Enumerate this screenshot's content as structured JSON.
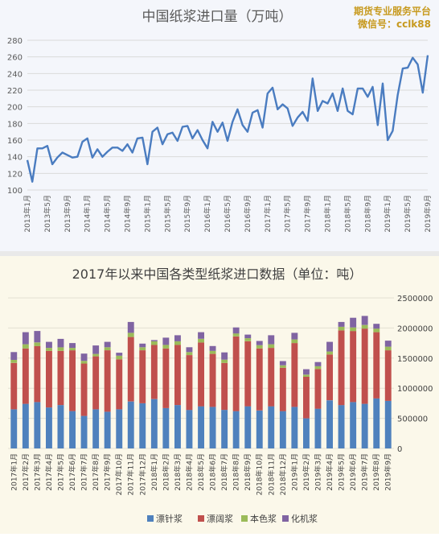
{
  "watermark": {
    "line1": "期货专业服务平台",
    "line2": "微信号：cclk88"
  },
  "chart_data": [
    {
      "type": "line",
      "title": "中国纸浆进口量（万吨）",
      "ylim": [
        100,
        280
      ],
      "yticks": [
        100,
        120,
        140,
        160,
        180,
        200,
        220,
        240,
        260,
        280
      ],
      "x_tick_labels": [
        "2013年1月",
        "2013年5月",
        "2013年9月",
        "2014年1月",
        "2014年5月",
        "2014年9月",
        "2015年1月",
        "2015年5月",
        "2015年9月",
        "2016年1月",
        "2016年5月",
        "2016年9月",
        "2017年1月",
        "2017年5月",
        "2017年9月",
        "2018年1月",
        "2018年5月",
        "2018年9月",
        "2019年1月",
        "2019年5月",
        "2019年9月"
      ],
      "color": "#4a7cc0",
      "grid": true,
      "values": [
        136,
        110,
        150,
        150,
        153,
        131,
        139,
        145,
        142,
        139,
        140,
        158,
        162,
        139,
        149,
        140,
        146,
        151,
        151,
        147,
        155,
        145,
        162,
        163,
        131,
        170,
        175,
        155,
        167,
        169,
        159,
        176,
        177,
        162,
        172,
        160,
        150,
        182,
        170,
        181,
        159,
        182,
        197,
        178,
        170,
        193,
        196,
        175,
        216,
        223,
        197,
        203,
        198,
        177,
        187,
        194,
        183,
        234,
        195,
        207,
        204,
        216,
        195,
        222,
        195,
        191,
        222,
        222,
        212,
        224,
        178,
        228,
        160,
        171,
        214,
        246,
        247,
        259,
        251,
        217,
        262
      ]
    },
    {
      "type": "bar",
      "stacked": true,
      "title": "2017年以来中国各类型纸浆进口数据（单位：吨）",
      "ylim": [
        0,
        2500000
      ],
      "yticks": [
        "0",
        "500000",
        "1000000",
        "1500000",
        "2000000",
        "2500000"
      ],
      "grid": true,
      "legend_position": "bottom",
      "categories": [
        "2017年1月",
        "2017年2月",
        "2017年3月",
        "2017年4月",
        "2017年5月",
        "2017年6月",
        "2017年7月",
        "2017年8月",
        "2017年9月",
        "2017年10月",
        "2017年11月",
        "2017年12月",
        "2018年1月",
        "2018年2月",
        "2018年3月",
        "2018年4月",
        "2018年5月",
        "2018年6月",
        "2018年7月",
        "2018年8月",
        "2018年9月",
        "2018年10月",
        "2018年11月",
        "2018年12月",
        "2019年1月",
        "2019年2月",
        "2019年3月",
        "2019年4月",
        "2019年5月",
        "2019年6月",
        "2019年7月",
        "2019年8月",
        "2019年9月"
      ],
      "series": [
        {
          "name": "漂针浆",
          "color": "#4f81bd",
          "values": [
            650000,
            740000,
            770000,
            680000,
            720000,
            620000,
            540000,
            650000,
            610000,
            650000,
            780000,
            750000,
            820000,
            670000,
            720000,
            640000,
            700000,
            690000,
            640000,
            620000,
            700000,
            630000,
            700000,
            620000,
            690000,
            500000,
            660000,
            800000,
            720000,
            770000,
            740000,
            830000,
            790000
          ]
        },
        {
          "name": "漂阔浆",
          "color": "#c0504d",
          "values": [
            770000,
            920000,
            930000,
            940000,
            900000,
            1010000,
            870000,
            880000,
            1020000,
            830000,
            1070000,
            880000,
            900000,
            990000,
            1000000,
            910000,
            1060000,
            880000,
            780000,
            1240000,
            1080000,
            1030000,
            970000,
            720000,
            1060000,
            690000,
            660000,
            760000,
            1240000,
            1180000,
            1250000,
            1100000,
            840000
          ]
        },
        {
          "name": "本色浆",
          "color": "#9bbb59",
          "values": [
            50000,
            70000,
            60000,
            50000,
            60000,
            40000,
            45000,
            40000,
            50000,
            60000,
            70000,
            50000,
            60000,
            60000,
            60000,
            50000,
            60000,
            50000,
            55000,
            50000,
            50000,
            55000,
            60000,
            40000,
            60000,
            35000,
            45000,
            50000,
            60000,
            60000,
            60000,
            60000,
            60000
          ]
        },
        {
          "name": "化机浆",
          "color": "#8064a2",
          "values": [
            130000,
            200000,
            190000,
            100000,
            140000,
            80000,
            120000,
            140000,
            90000,
            50000,
            180000,
            60000,
            20000,
            120000,
            100000,
            80000,
            110000,
            80000,
            120000,
            100000,
            60000,
            70000,
            150000,
            70000,
            110000,
            90000,
            70000,
            160000,
            80000,
            160000,
            150000,
            80000,
            100000
          ]
        }
      ]
    }
  ]
}
